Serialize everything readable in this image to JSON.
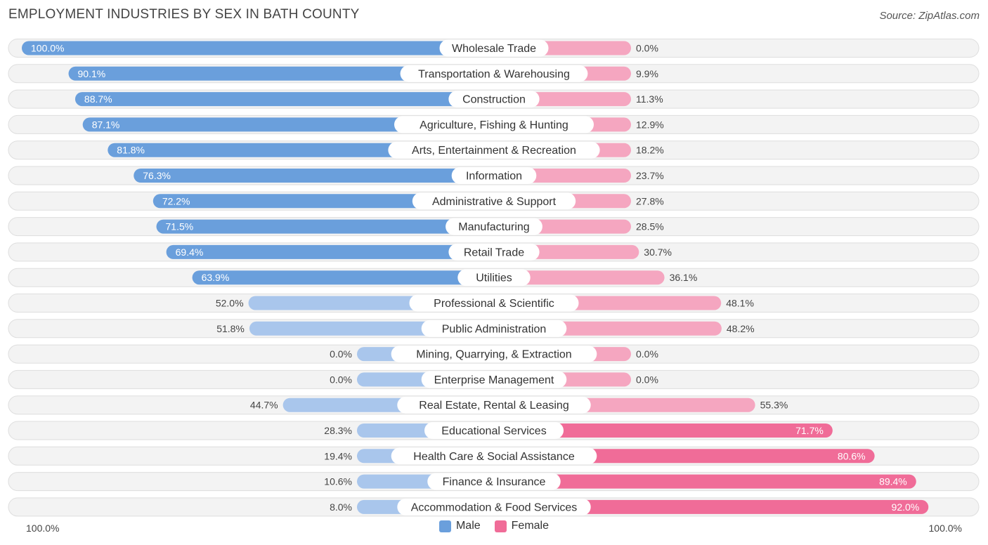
{
  "title": "EMPLOYMENT INDUSTRIES BY SEX IN BATH COUNTY",
  "source": "Source: ZipAtlas.com",
  "colors": {
    "male": "#6a9fdc",
    "male_light": "#a9c6ec",
    "female": "#f06c98",
    "female_light": "#f5a6c0"
  },
  "legend": {
    "male": "Male",
    "female": "Female"
  },
  "axis": {
    "left": "100.0%",
    "right": "100.0%"
  },
  "chart_data": {
    "type": "bar",
    "orientation": "horizontal-diverging",
    "title": "EMPLOYMENT INDUSTRIES BY SEX IN BATH COUNTY",
    "xlim": [
      -100,
      100
    ],
    "categories": [
      "Wholesale Trade",
      "Transportation & Warehousing",
      "Construction",
      "Agriculture, Fishing & Hunting",
      "Arts, Entertainment & Recreation",
      "Information",
      "Administrative & Support",
      "Manufacturing",
      "Retail Trade",
      "Utilities",
      "Professional & Scientific",
      "Public Administration",
      "Mining, Quarrying, & Extraction",
      "Enterprise Management",
      "Real Estate, Rental & Leasing",
      "Educational Services",
      "Health Care & Social Assistance",
      "Finance & Insurance",
      "Accommodation & Food Services"
    ],
    "series": [
      {
        "name": "Male",
        "values": [
          100.0,
          90.1,
          88.7,
          87.1,
          81.8,
          76.3,
          72.2,
          71.5,
          69.4,
          63.9,
          52.0,
          51.8,
          0.0,
          0.0,
          44.7,
          28.3,
          19.4,
          10.6,
          8.0
        ],
        "labels": [
          "100.0%",
          "90.1%",
          "88.7%",
          "87.1%",
          "81.8%",
          "76.3%",
          "72.2%",
          "71.5%",
          "69.4%",
          "63.9%",
          "52.0%",
          "51.8%",
          "0.0%",
          "0.0%",
          "44.7%",
          "28.3%",
          "19.4%",
          "10.6%",
          "8.0%"
        ]
      },
      {
        "name": "Female",
        "values": [
          0.0,
          9.9,
          11.3,
          12.9,
          18.2,
          23.7,
          27.8,
          28.5,
          30.7,
          36.1,
          48.1,
          48.2,
          0.0,
          0.0,
          55.3,
          71.7,
          80.6,
          89.4,
          92.0
        ],
        "labels": [
          "0.0%",
          "9.9%",
          "11.3%",
          "12.9%",
          "18.2%",
          "23.7%",
          "27.8%",
          "28.5%",
          "30.7%",
          "36.1%",
          "48.1%",
          "48.2%",
          "0.0%",
          "0.0%",
          "55.3%",
          "71.7%",
          "80.6%",
          "89.4%",
          "92.0%"
        ]
      }
    ],
    "legend_position": "bottom-center"
  }
}
